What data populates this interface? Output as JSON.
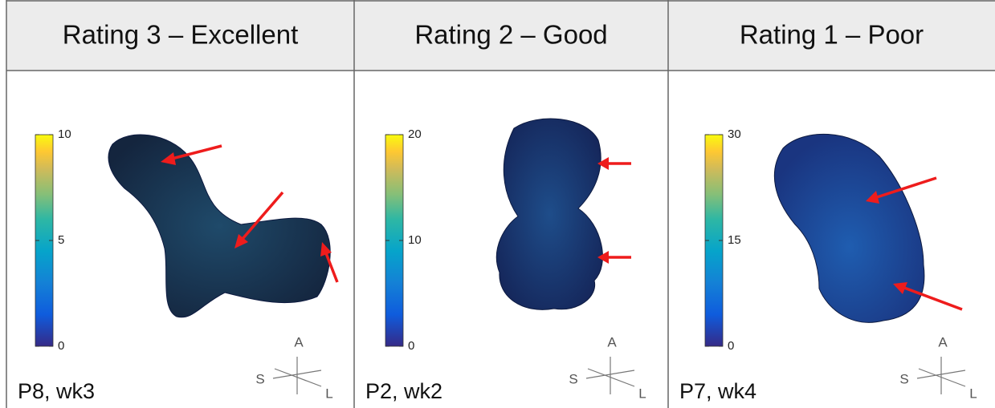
{
  "panels": [
    {
      "header": "Rating 3 – Excellent",
      "caption": "P8, wk3",
      "colorbar": {
        "lim": [
          0,
          10
        ],
        "ticks": [
          0,
          5,
          10
        ]
      },
      "orientation": {
        "anterior": "A",
        "superior": "S",
        "lateral": "L"
      }
    },
    {
      "header": "Rating 2 – Good",
      "caption": "P2, wk2",
      "colorbar": {
        "lim": [
          0,
          20
        ],
        "ticks": [
          0,
          10,
          20
        ]
      },
      "orientation": {
        "anterior": "A",
        "superior": "S",
        "lateral": "L"
      }
    },
    {
      "header": "Rating 1 – Poor",
      "caption": "P7, wk4",
      "colorbar": {
        "lim": [
          0,
          30
        ],
        "ticks": [
          0,
          15,
          30
        ]
      },
      "orientation": {
        "anterior": "A",
        "superior": "S",
        "lateral": "L"
      }
    }
  ]
}
